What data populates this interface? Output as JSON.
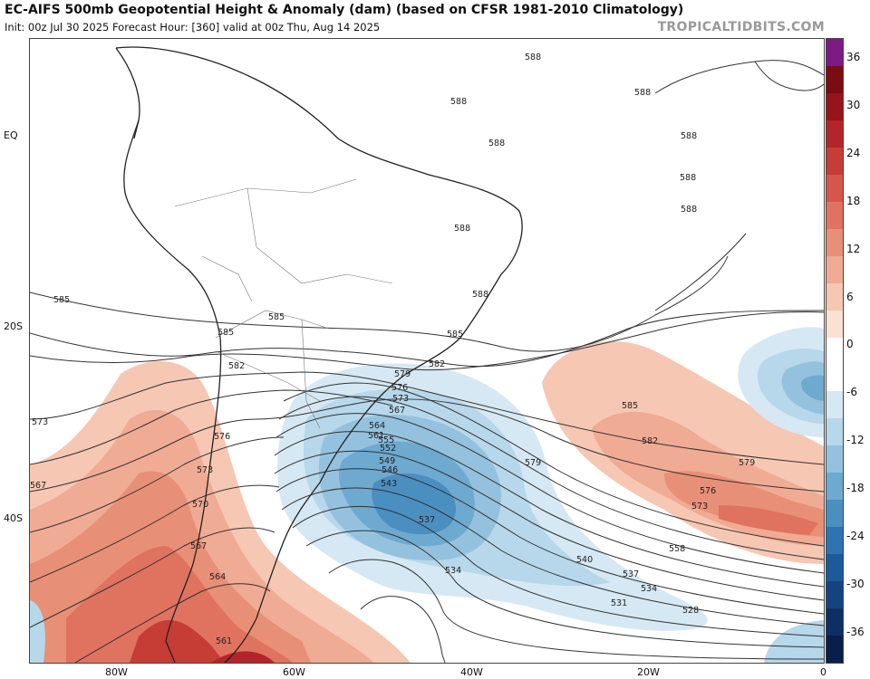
{
  "header": {
    "title": "EC-AIFS 500mb Geopotential Height & Anomaly (dam) (based on CFSR 1981-2010 Climatology)",
    "subtitle": "Init: 00z Jul 30 2025   Forecast Hour: [360]   valid at 00z Thu, Aug 14 2025",
    "brand": "TROPICALTIDBITS.COM"
  },
  "axes": {
    "latitudes": [
      "EQ",
      "20S",
      "40S"
    ],
    "longitudes": [
      "80W",
      "60W",
      "40W",
      "20W",
      "0"
    ]
  },
  "colorbar": {
    "labels": [
      "36",
      "30",
      "24",
      "18",
      "12",
      "6",
      "0",
      "-6",
      "-12",
      "-18",
      "-24",
      "-30",
      "-36"
    ],
    "colors": [
      "#7d1b84",
      "#7a0d12",
      "#96141b",
      "#b3252a",
      "#c63d36",
      "#d4574a",
      "#df735f",
      "#e88f77",
      "#f0ab94",
      "#f6c7b3",
      "#fbe1d4",
      "#ffffff",
      "#ffffff",
      "#d6e8f3",
      "#b7d7ea",
      "#94c2de",
      "#6ea9d0",
      "#4b8fc1",
      "#2f74b0",
      "#1c5a99",
      "#134481",
      "#0d2f66",
      "#081f4d"
    ]
  },
  "map": {
    "contour_labels": [
      "588",
      "588",
      "588",
      "588",
      "588",
      "588",
      "588",
      "588",
      "588",
      "585",
      "585",
      "585",
      "585",
      "585",
      "582",
      "582",
      "582",
      "579",
      "579",
      "579",
      "576",
      "576",
      "576",
      "573",
      "573",
      "573",
      "573",
      "570",
      "567",
      "567",
      "567",
      "564",
      "564",
      "561",
      "561",
      "555",
      "552",
      "549",
      "546",
      "543",
      "540",
      "537",
      "537",
      "534",
      "534",
      "531",
      "528",
      "558"
    ],
    "anomaly_colors": {
      "positive": "#e07a5f",
      "negative": "#3a82bf"
    }
  }
}
